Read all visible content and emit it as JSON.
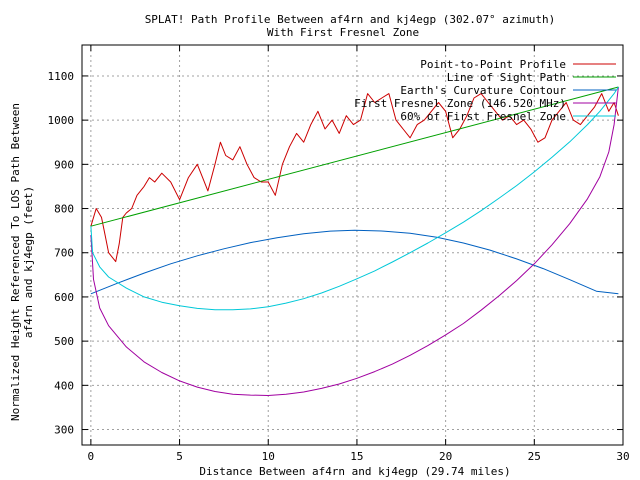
{
  "chart_data": {
    "type": "line",
    "title": "SPLAT! Path Profile Between af4rn and kj4egp (302.07° azimuth)",
    "subtitle": "With First Fresnel Zone",
    "xlabel": "Distance Between af4rn and kj4egp (29.74 miles)",
    "ylabel": "Normalized Height Referenced To LOS Path Between af4rn and kj4egp (feet)",
    "ylabel_lines": [
      "Normalized Height Referenced To LOS Path Between",
      "af4rn and kj4egp (feet)"
    ],
    "xlim": [
      -0.5,
      30
    ],
    "ylim": [
      265,
      1170
    ],
    "xticks": [
      0,
      5,
      10,
      15,
      20,
      25,
      30
    ],
    "yticks": [
      300,
      400,
      500,
      600,
      700,
      800,
      900,
      1000,
      1100
    ],
    "grid": true,
    "legend_position": "top-right",
    "series": [
      {
        "name": "Point-to-Point Profile",
        "color": "#cc0000",
        "x": [
          0,
          0.3,
          0.6,
          0.8,
          1.0,
          1.2,
          1.4,
          1.6,
          1.8,
          2.0,
          2.3,
          2.6,
          3.0,
          3.3,
          3.6,
          4.0,
          4.5,
          5.0,
          5.5,
          6.0,
          6.3,
          6.6,
          7.0,
          7.3,
          7.6,
          8.0,
          8.4,
          8.8,
          9.2,
          9.6,
          10.0,
          10.4,
          10.8,
          11.2,
          11.6,
          12.0,
          12.4,
          12.8,
          13.2,
          13.6,
          14.0,
          14.4,
          14.8,
          15.2,
          15.6,
          16.0,
          16.4,
          16.8,
          17.2,
          17.6,
          18.0,
          18.4,
          18.8,
          19.2,
          19.6,
          20.0,
          20.4,
          20.8,
          21.2,
          21.6,
          22.0,
          22.4,
          22.8,
          23.2,
          23.6,
          24.0,
          24.4,
          24.8,
          25.2,
          25.6,
          26.0,
          26.4,
          26.8,
          27.2,
          27.6,
          28.0,
          28.4,
          28.8,
          29.2,
          29.5,
          29.74
        ],
        "y": [
          760,
          800,
          780,
          740,
          700,
          690,
          680,
          720,
          780,
          790,
          800,
          830,
          850,
          870,
          860,
          880,
          860,
          820,
          870,
          900,
          870,
          840,
          900,
          950,
          920,
          910,
          940,
          900,
          870,
          860,
          860,
          830,
          900,
          940,
          970,
          950,
          990,
          1020,
          980,
          1000,
          970,
          1010,
          990,
          1000,
          1060,
          1040,
          1050,
          1060,
          1000,
          980,
          960,
          990,
          1000,
          1020,
          1040,
          1020,
          960,
          980,
          1010,
          1050,
          1060,
          1040,
          1020,
          1000,
          1010,
          990,
          1000,
          980,
          950,
          960,
          1000,
          1020,
          1040,
          1000,
          990,
          1010,
          1030,
          1060,
          1020,
          1040,
          1010
        ]
      },
      {
        "name": "Line of Sight Path",
        "color": "#00a000",
        "x": [
          0,
          29.74
        ],
        "y": [
          760,
          1075
        ]
      },
      {
        "name": "Earth's Curvature Contour",
        "color": "#0060c0",
        "x": [
          0,
          1.5,
          3,
          4.5,
          6,
          7.5,
          9,
          10.5,
          12,
          13.5,
          14.87,
          16.5,
          18,
          19.5,
          21,
          22.5,
          24,
          25.5,
          27,
          28.5,
          29.74
        ],
        "y": [
          607,
          631,
          654,
          675,
          693,
          709,
          723,
          734,
          743,
          749,
          751,
          749,
          744,
          735,
          722,
          706,
          686,
          664,
          639,
          613,
          607
        ]
      },
      {
        "name": "First Fresnel Zone (146.520 MHz)",
        "color": "#a000a0",
        "x": [
          0,
          0.15,
          0.5,
          1,
          2,
          3,
          4,
          5,
          6,
          7,
          8,
          9,
          10,
          11,
          12,
          13,
          14,
          15,
          16,
          17,
          18,
          19,
          20,
          21,
          22,
          23,
          24,
          25,
          26,
          27,
          28,
          28.7,
          29.2,
          29.5,
          29.74
        ],
        "y": [
          740,
          640,
          575,
          535,
          487,
          453,
          429,
          410,
          396,
          386,
          380,
          378,
          377,
          380,
          385,
          393,
          403,
          416,
          431,
          448,
          468,
          490,
          514,
          540,
          570,
          602,
          637,
          675,
          718,
          766,
          822,
          872,
          928,
          990,
          1075
        ]
      },
      {
        "name": "60% of First Fresnel Zone",
        "color": "#00c8d8",
        "x": [
          0,
          0.1,
          0.5,
          1,
          2,
          3,
          4,
          5,
          6,
          7,
          8,
          9,
          10,
          11,
          12,
          13,
          14,
          15,
          16,
          17,
          18,
          19,
          20,
          21,
          22,
          23,
          24,
          25,
          26,
          27,
          28,
          28.7,
          29.2,
          29.5,
          29.74
        ],
        "y": [
          760,
          700,
          668,
          645,
          620,
          600,
          588,
          580,
          574,
          571,
          571,
          573,
          578,
          586,
          596,
          609,
          624,
          641,
          659,
          679,
          700,
          722,
          745,
          769,
          795,
          823,
          852,
          883,
          916,
          951,
          990,
          1020,
          1045,
          1060,
          1075
        ]
      }
    ]
  }
}
